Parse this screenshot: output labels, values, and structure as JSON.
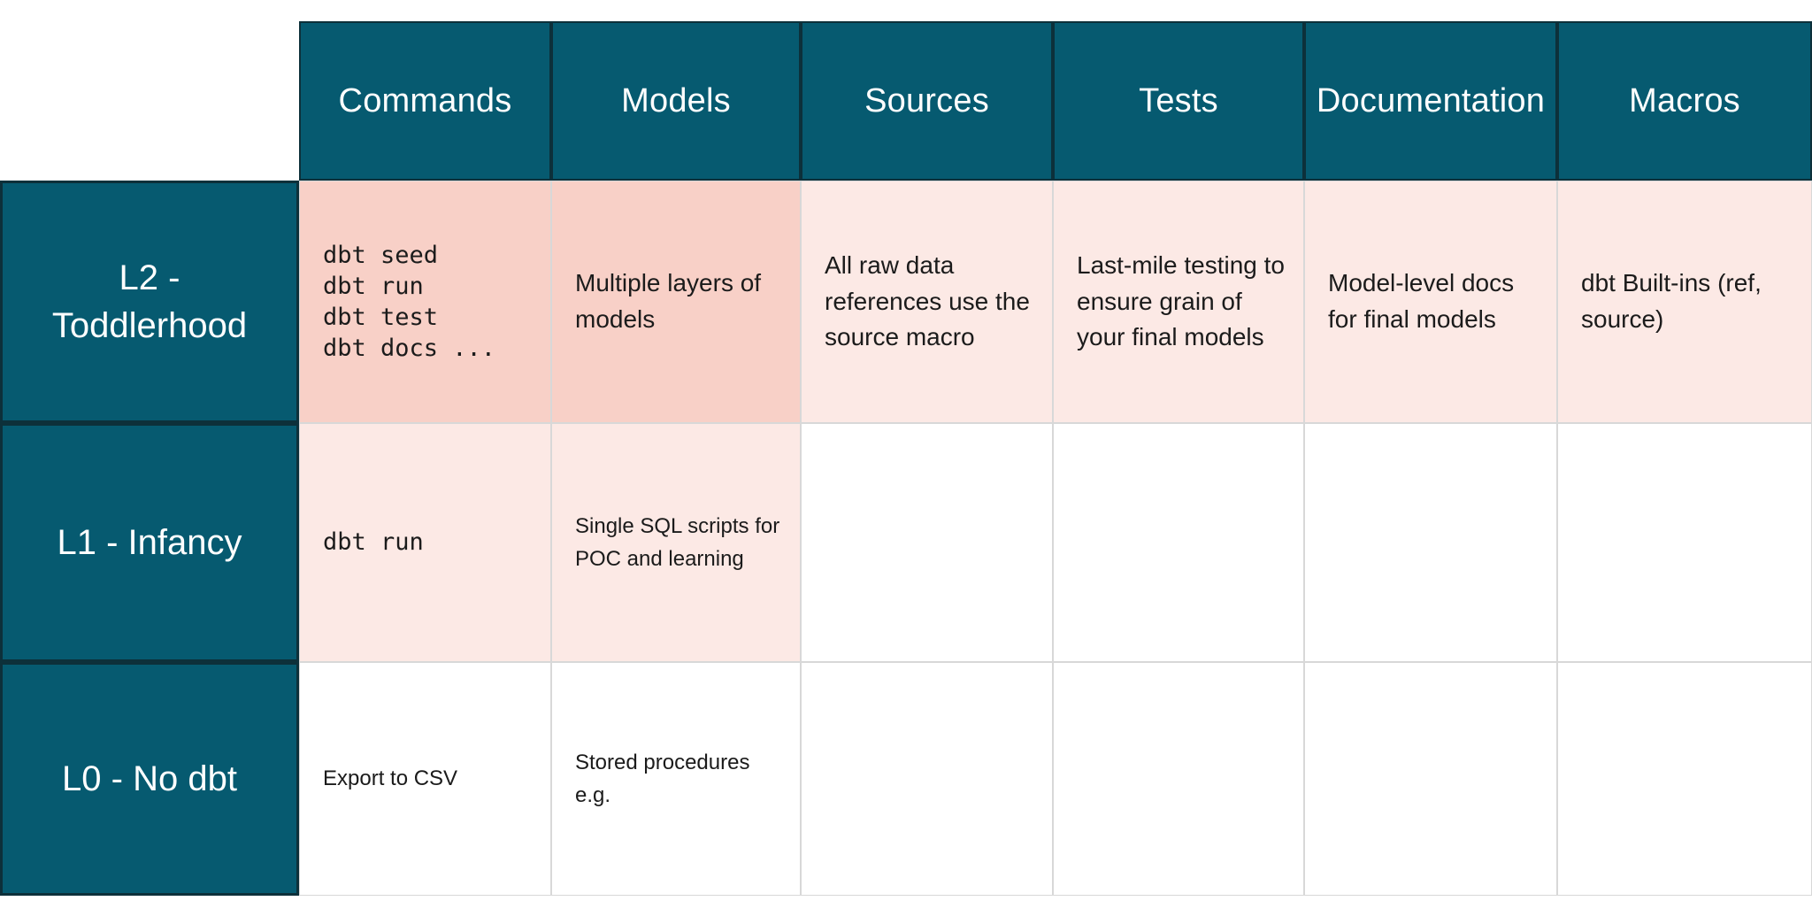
{
  "chart_data": {
    "type": "table",
    "description": "dbt maturity levels matrix",
    "columns": [
      "Commands",
      "Models",
      "Sources",
      "Tests",
      "Documentation",
      "Macros"
    ],
    "rows": [
      {
        "label": "L2 - Toddlerhood",
        "cells": [
          "dbt seed\ndbt run\ndbt test\ndbt docs ...",
          "Multiple layers of models",
          "All raw data references use the source macro",
          "Last-mile testing to ensure grain of your final models",
          "Model-level docs for final models",
          "dbt Built-ins (ref, source)"
        ],
        "highlights": [
          "strong",
          "strong",
          "light",
          "light",
          "light",
          "light"
        ]
      },
      {
        "label": "L1 - Infancy",
        "cells": [
          "dbt run",
          "Single SQL scripts for POC and learning",
          "",
          "",
          "",
          ""
        ],
        "highlights": [
          "light",
          "light",
          "none",
          "none",
          "none",
          "none"
        ]
      },
      {
        "label": "L0 - No dbt",
        "cells": [
          "Export to CSV",
          "Stored procedures e.g.",
          "",
          "",
          "",
          ""
        ],
        "highlights": [
          "none",
          "none",
          "none",
          "none",
          "none",
          "none"
        ]
      }
    ],
    "legend_position": "none",
    "grid": true
  },
  "colors": {
    "header_bg": "#065a70",
    "header_text": "#ffffff",
    "dark_border": "#0d303a",
    "grid_line": "#d8d8d8",
    "highlight_strong": "#f8d0c7",
    "highlight_light": "#fce9e5",
    "cell_text": "#1b1b1b",
    "background": "#ffffff"
  }
}
